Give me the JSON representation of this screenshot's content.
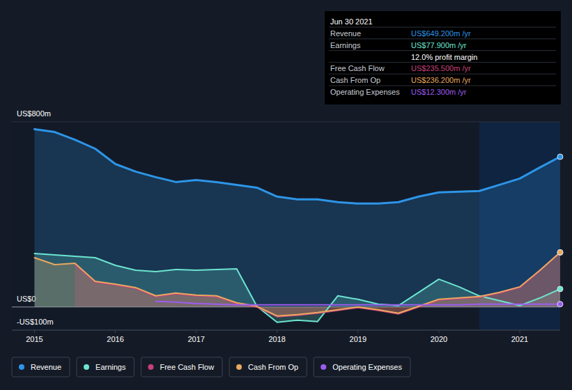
{
  "chart_data": {
    "type": "line",
    "x": [
      2015,
      2015.25,
      2015.5,
      2015.75,
      2016,
      2016.25,
      2016.5,
      2016.75,
      2017,
      2017.25,
      2017.5,
      2017.75,
      2018,
      2018.25,
      2018.5,
      2018.75,
      2019,
      2019.25,
      2019.5,
      2019.75,
      2020,
      2020.25,
      2020.5,
      2020.75,
      2021,
      2021.25,
      2021.5
    ],
    "xlim": [
      2014.72,
      2021.5
    ],
    "xticks": [
      2015,
      2016,
      2017,
      2018,
      2019,
      2020,
      2021
    ],
    "ylim": [
      -100,
      800
    ],
    "yticks": [
      {
        "value": -100,
        "label": "-US$100m"
      },
      {
        "value": 0,
        "label": "US$0"
      },
      {
        "value": 800,
        "label": "US$800m"
      }
    ],
    "grid": true,
    "legend": "bottom",
    "series": [
      {
        "name": "Revenue",
        "color": "#2d95e8",
        "values": [
          768,
          756,
          723,
          684,
          618,
          585,
          561,
          540,
          549,
          540,
          528,
          516,
          477,
          465,
          465,
          453,
          447,
          447,
          453,
          477,
          495,
          498,
          501,
          528,
          555,
          603,
          649.2
        ]
      },
      {
        "name": "Earnings",
        "color": "#6ce5d0",
        "values": [
          231,
          225,
          219,
          213,
          180,
          159,
          153,
          162,
          159,
          162,
          165,
          3,
          -66,
          -57,
          -63,
          48,
          33,
          12,
          6,
          63,
          120,
          87,
          48,
          27,
          6,
          39,
          77.9
        ]
      },
      {
        "name": "Free Cash Flow",
        "color": "#c9407b",
        "values": [
          null,
          null,
          185,
          108,
          96,
          81,
          45,
          57,
          48,
          45,
          15,
          0,
          -42,
          -36,
          -27,
          -15,
          -3,
          -15,
          -30,
          0,
          30,
          36,
          42,
          60,
          84,
          157,
          235.5
        ]
      },
      {
        "name": "Cash From Op",
        "color": "#eaa85f",
        "values": [
          213,
          183,
          189,
          111,
          99,
          84,
          48,
          60,
          51,
          48,
          18,
          3,
          -39,
          -33,
          -24,
          -12,
          0,
          -12,
          -27,
          3,
          33,
          39,
          45,
          63,
          87,
          159,
          236.2
        ]
      },
      {
        "name": "Operating Expenses",
        "color": "#9d5cf0",
        "values": [
          null,
          null,
          null,
          null,
          null,
          null,
          24,
          21,
          15,
          12,
          9,
          9,
          9,
          9,
          9,
          9,
          9,
          9,
          9,
          9,
          9,
          9,
          12,
          12,
          12,
          12,
          12.3
        ]
      }
    ],
    "annotations": {
      "date": "Jun 30 2021",
      "rows": [
        {
          "label": "Revenue",
          "text": "US$649.200m /yr"
        },
        {
          "label": "Earnings",
          "text": "US$77.900m /yr"
        },
        {
          "text": "12.0% profit margin"
        },
        {
          "label": "Free Cash Flow",
          "text": "US$235.500m /yr"
        },
        {
          "label": "Cash From Op",
          "text": "US$236.200m /yr"
        },
        {
          "label": "Operating Expenses",
          "text": "US$12.300m /yr"
        }
      ]
    }
  }
}
